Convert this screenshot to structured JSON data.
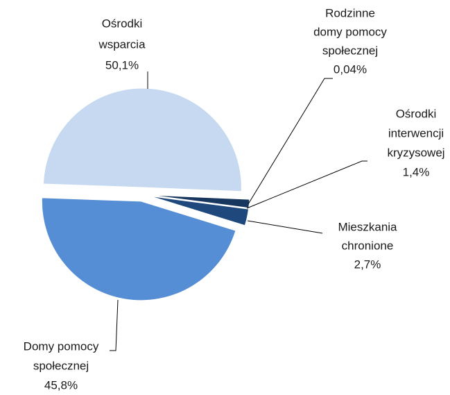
{
  "chart_data": {
    "type": "pie",
    "categories": [
      [
        "Ośrodki",
        "wsparcia"
      ],
      [
        "Rodzinne",
        "domy pomocy",
        "społecznej"
      ],
      [
        "Ośrodki",
        "interwencji",
        "kryzysowej"
      ],
      [
        "Mieszkania",
        "chronione"
      ],
      [
        "Domy pomocy",
        "społecznej"
      ]
    ],
    "values": [
      50.1,
      0.04,
      1.4,
      2.7,
      45.8
    ],
    "value_labels": [
      "50,1%",
      "0,04%",
      "1,4%",
      "2,7%",
      "45,8%"
    ],
    "colors": [
      "#c6d9f1",
      "#10243f",
      "#17375e",
      "#1f497d",
      "#558ed5"
    ]
  }
}
